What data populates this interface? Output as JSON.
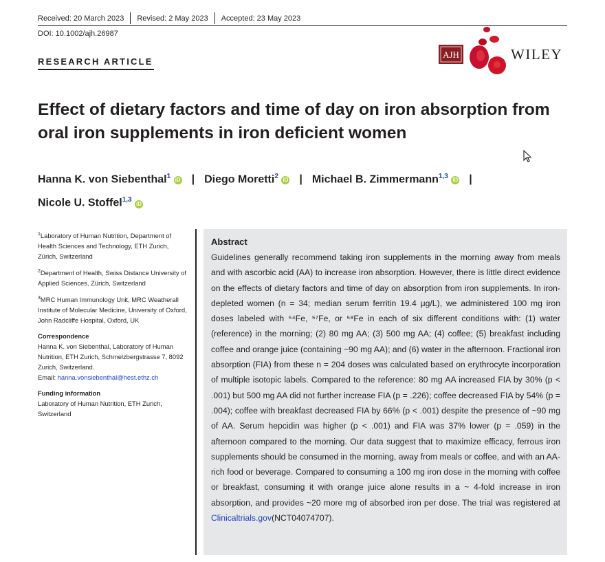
{
  "meta": {
    "received": "Received: 20 March 2023",
    "revised": "Revised: 2 May 2023",
    "accepted": "Accepted: 23 May 2023",
    "doi": "DOI: 10.1002/ajh.26987"
  },
  "article_type": "RESEARCH ARTICLE",
  "journal": {
    "abbr": "AJH",
    "publisher": "WILEY"
  },
  "title": "Effect of dietary factors and time of day on iron absorption from oral iron supplements in iron deficient women",
  "authors": [
    {
      "name": "Hanna K. von Siebenthal",
      "aff": "1"
    },
    {
      "name": "Diego Moretti",
      "aff": "2"
    },
    {
      "name": "Michael B. Zimmermann",
      "aff": "1,3"
    },
    {
      "name": "Nicole U. Stoffel",
      "aff": "1,3"
    }
  ],
  "affiliations": [
    {
      "num": "1",
      "text": "Laboratory of Human Nutrition, Department of Health Sciences and Technology, ETH Zurich, Zürich, Switzerland"
    },
    {
      "num": "2",
      "text": "Department of Health, Swiss Distance University of Applied Sciences, Zürich, Switzerland"
    },
    {
      "num": "3",
      "text": "MRC Human Immunology Unit, MRC Weatherall Institute of Molecular Medicine, University of Oxford, John Radcliffe Hospital, Oxford, UK"
    }
  ],
  "correspondence": {
    "heading": "Correspondence",
    "text": "Hanna K. von Siebenthal, Laboratory of Human Nutrition, ETH Zurich, Schmelzbergstrasse 7, 8092 Zurich, Switzerland.",
    "email_label": "Email:",
    "email": "hanna.vonsiebenthal@hest.ethz.ch"
  },
  "funding": {
    "heading": "Funding information",
    "text": "Laboratory of Human Nutrition, ETH Zurich, Switzerland"
  },
  "abstract": {
    "heading": "Abstract",
    "part1": "Guidelines generally recommend taking iron supplements in the morning away from meals and with ascorbic acid (AA) to increase iron absorption. However, there is little direct evidence on the effects of dietary factors and time of day on absorption from iron supplements. In iron-depleted women (n = 34; median serum ferritin 19.4 μg/L), we administered 100 mg iron doses labeled with ⁵⁴Fe, ⁵⁷Fe, or ⁵⁸Fe in each of six different conditions with: (1) water (reference) in the morning; (2) 80 mg AA; (3) 500 mg AA; (4) coffee; (5) breakfast including coffee and orange juice (containing ~90 mg AA); and (6) water in the afternoon. Fractional iron absorption (FIA) from these n = 204 doses was calculated based on erythrocyte incorporation of multiple isotopic labels. Compared to the reference: 80 mg AA increased FIA by 30% (p < .001) but 500 mg AA did not further increase FIA (p = .226); coffee decreased FIA by 54% (p = .004); coffee with breakfast decreased FIA by 66% (p < .001) despite the presence of ~90 mg of AA. Serum hepcidin was higher (p < .001) and FIA was 37% lower (p = .059) in the afternoon compared to the morning. Our data suggest that to maximize efficacy, ferrous iron supplements should be consumed in the morning, away from meals or coffee, and with an AA-rich food or beverage. Compared to consuming a 100 mg iron dose in the morning with coffee or breakfast, consuming it with orange juice alone results in a ~ 4-fold increase in iron absorption, and provides ~20 more mg of absorbed iron per dose. The trial was registered at ",
    "link": "Clinicaltrials.gov",
    "part2": "(NCT04074707)."
  },
  "colors": {
    "link": "#1f3fbf",
    "logo_red": "#c8102e",
    "orcid": "#a6ce39",
    "abstract_bg": "#e6e7e8"
  }
}
